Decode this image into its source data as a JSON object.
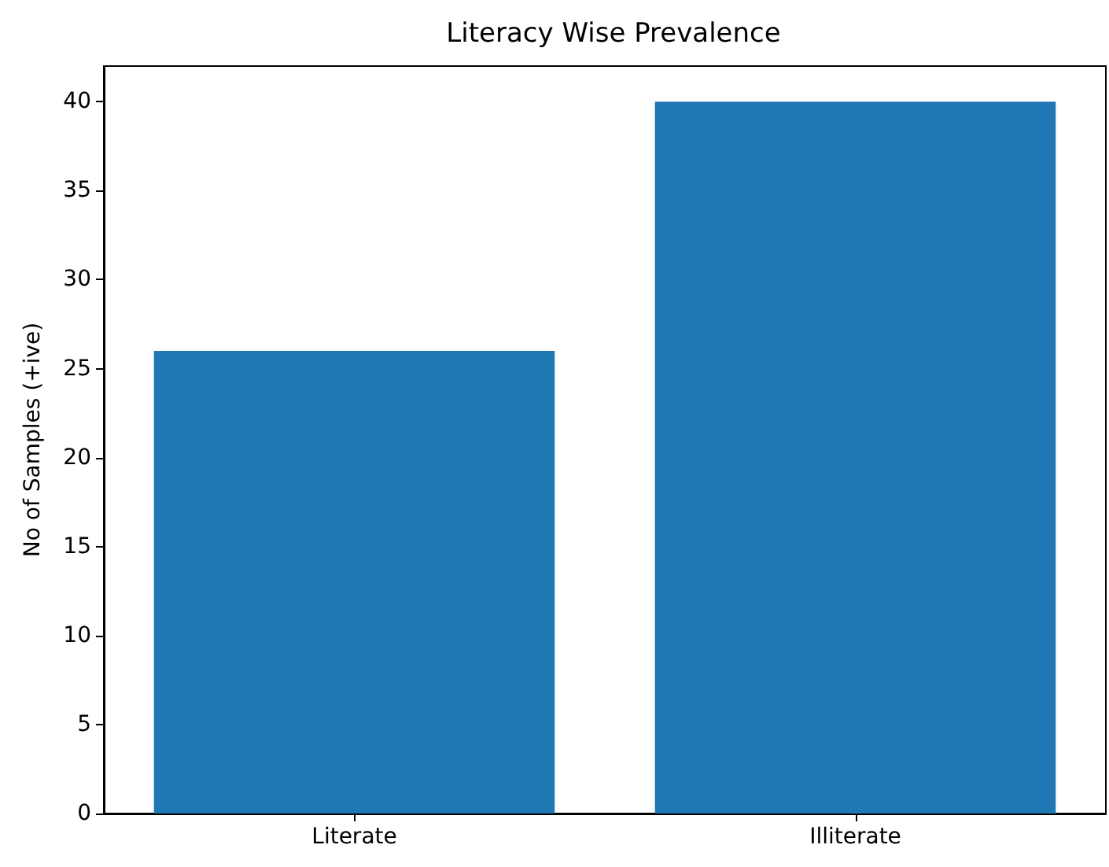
{
  "chart_data": {
    "type": "bar",
    "title": "Literacy Wise Prevalence",
    "ylabel": "No of Samples (+ive)",
    "categories": [
      "Literate",
      "Illiterate"
    ],
    "values": [
      26,
      40
    ],
    "color": "#1f77b4",
    "ylim": [
      0,
      42
    ],
    "yticks": [
      0,
      5,
      10,
      15,
      20,
      25,
      30,
      35,
      40
    ],
    "grid": false
  }
}
